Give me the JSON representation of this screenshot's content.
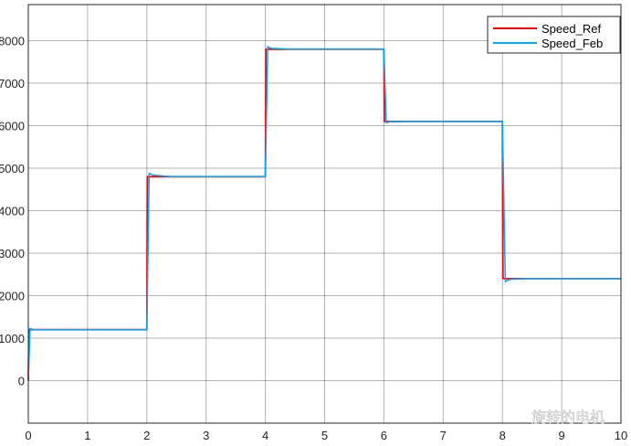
{
  "chart_data": {
    "type": "line",
    "title": "",
    "xlabel": "",
    "ylabel": "",
    "xlim": [
      0,
      10
    ],
    "ylim": [
      -1000,
      8850
    ],
    "xticks": [
      "0",
      "1",
      "2",
      "3",
      "4",
      "5",
      "6",
      "7",
      "8",
      "9",
      "10"
    ],
    "yticks": [
      "0",
      "1000",
      "2000",
      "3000",
      "4000",
      "5000",
      "6000",
      "7000",
      "8000"
    ],
    "grid": true,
    "legend_position": "top-right",
    "series": [
      {
        "name": "Speed_Ref",
        "color": "#ff0000",
        "x": [
          0,
          0.01,
          2,
          2.01,
          4,
          4.01,
          6,
          6.01,
          8,
          8.01,
          10
        ],
        "y": [
          0,
          1200,
          1200,
          4800,
          4800,
          7800,
          7800,
          6100,
          6100,
          2400,
          2400
        ]
      },
      {
        "name": "Speed_Feb",
        "color": "#00aaff",
        "x": [
          0,
          0.03,
          0.08,
          0.3,
          2,
          2.04,
          2.1,
          2.4,
          4,
          4.04,
          4.1,
          4.4,
          6,
          6.04,
          6.1,
          6.4,
          8,
          8.05,
          8.12,
          8.4,
          10
        ],
        "y": [
          0,
          1230,
          1200,
          1200,
          1200,
          4880,
          4840,
          4800,
          4800,
          7860,
          7820,
          7800,
          7800,
          6070,
          6090,
          6100,
          6100,
          2330,
          2380,
          2400,
          2400
        ]
      }
    ]
  },
  "watermark": "旋转的电机"
}
